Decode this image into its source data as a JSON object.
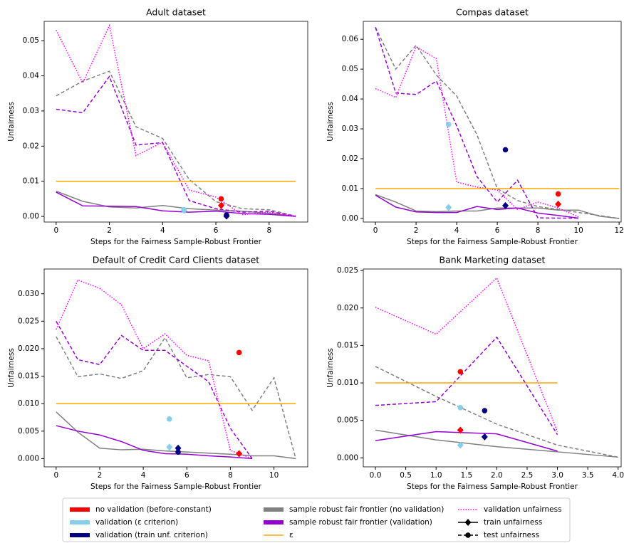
{
  "chart_data": [
    {
      "type": "line",
      "title": "Adult dataset",
      "xlabel": "Steps for the Fairness Sample-Robust Frontier",
      "ylabel": "Unfairness",
      "xlim": [
        -0.45,
        9.45
      ],
      "ylim": [
        -0.0016,
        0.0555
      ],
      "xticks": [
        0,
        2,
        4,
        6,
        8
      ],
      "yticks": [
        {
          "value": 0,
          "label": "0.00"
        },
        {
          "value": 0.01,
          "label": "0.01"
        },
        {
          "value": 0.02,
          "label": "0.02"
        },
        {
          "value": 0.03,
          "label": "0.03"
        },
        {
          "value": 0.04,
          "label": "0.04"
        },
        {
          "value": 0.05,
          "label": "0.05"
        }
      ],
      "series": [
        {
          "color": "#808080",
          "dash": "solid",
          "x": [
            0,
            1,
            2,
            3,
            4,
            5,
            6,
            7,
            8,
            9
          ],
          "values": [
            0.0072,
            0.0043,
            0.0027,
            0.0024,
            0.0031,
            0.0022,
            0.0018,
            0.0015,
            0.0009,
            0.0001
          ]
        },
        {
          "color": "#808080",
          "dash": "dashed",
          "x": [
            0,
            1,
            2,
            3,
            4,
            5,
            6,
            7,
            8,
            9
          ],
          "values": [
            0.0343,
            0.0385,
            0.0413,
            0.0255,
            0.0222,
            0.0105,
            0.0042,
            0.0022,
            0.0019,
            0.0001
          ]
        },
        {
          "color": "#9400d3",
          "dash": "solid",
          "x": [
            0,
            1,
            2,
            3,
            4,
            5,
            6,
            7,
            8,
            9
          ],
          "values": [
            0.0069,
            0.003,
            0.0029,
            0.0028,
            0.0016,
            0.0012,
            0.0015,
            0.0008,
            0.0006,
            0
          ]
        },
        {
          "color": "#9400d3",
          "dash": "dashed",
          "x": [
            0,
            1,
            2,
            3,
            4,
            5,
            6,
            7,
            8,
            9
          ],
          "values": [
            0.0305,
            0.0295,
            0.0398,
            0.0203,
            0.021,
            0.0045,
            0.0022,
            0.0012,
            0.0015,
            0
          ]
        },
        {
          "color": "#ff00ff",
          "dash": "dotted",
          "x": [
            0,
            1,
            2,
            3,
            4,
            5,
            6,
            7,
            8,
            9
          ],
          "values": [
            0.053,
            0.038,
            0.0543,
            0.0173,
            0.0211,
            0.0075,
            0.0055,
            0.0005,
            0.0012,
            0
          ]
        },
        {
          "color": "#ffa500",
          "dash": "solid",
          "x": [
            0,
            9
          ],
          "values": [
            0.01,
            0.01
          ]
        }
      ],
      "points": [
        {
          "color": "#ff0000",
          "marker": "circle",
          "x": 6.2,
          "y": 0.005
        },
        {
          "color": "#ff0000",
          "marker": "diamond",
          "x": 6.2,
          "y": 0.0031
        },
        {
          "color": "#87ceeb",
          "marker": "circle",
          "x": 4.8,
          "y": 0.0019
        },
        {
          "color": "#87ceeb",
          "marker": "diamond",
          "x": 4.8,
          "y": 0.0017
        },
        {
          "color": "#000080",
          "marker": "circle",
          "x": 6.4,
          "y": 0.0004
        },
        {
          "color": "#000080",
          "marker": "diamond",
          "x": 6.4,
          "y": 0.0001
        }
      ]
    },
    {
      "type": "line",
      "title": "Compas dataset",
      "xlabel": "Steps for the Fairness Sample-Robust Frontier",
      "ylabel": "Unfairness",
      "xlim": [
        -0.6,
        12.1
      ],
      "ylim": [
        -0.0012,
        0.066
      ],
      "xticks": [
        0,
        2,
        4,
        6,
        8,
        10,
        12
      ],
      "yticks": [
        {
          "value": 0,
          "label": "0.00"
        },
        {
          "value": 0.01,
          "label": "0.01"
        },
        {
          "value": 0.02,
          "label": "0.02"
        },
        {
          "value": 0.03,
          "label": "0.03"
        },
        {
          "value": 0.04,
          "label": "0.04"
        },
        {
          "value": 0.05,
          "label": "0.05"
        },
        {
          "value": 0.06,
          "label": "0.06"
        }
      ],
      "series": [
        {
          "color": "#808080",
          "dash": "solid",
          "x": [
            0,
            1,
            2,
            3,
            4,
            5,
            6,
            7,
            8,
            9,
            10,
            11,
            12
          ],
          "values": [
            0.008,
            0.0055,
            0.0025,
            0.0023,
            0.0025,
            0.0025,
            0.0035,
            0.0035,
            0.0035,
            0.0028,
            0.0028,
            0.0008,
            0
          ]
        },
        {
          "color": "#808080",
          "dash": "dashed",
          "x": [
            0,
            1,
            2,
            3,
            4,
            5,
            6,
            7,
            8,
            9,
            10,
            11,
            12
          ],
          "values": [
            0.064,
            0.05,
            0.058,
            0.048,
            0.041,
            0.028,
            0.01,
            0.006,
            0.004,
            0.003,
            0.002,
            0.001,
            0
          ]
        },
        {
          "color": "#9400d3",
          "dash": "solid",
          "x": [
            0,
            1,
            2,
            3,
            4,
            5,
            6,
            7,
            8,
            9,
            10
          ],
          "values": [
            0.0078,
            0.0038,
            0.0022,
            0.002,
            0.002,
            0.004,
            0.003,
            0.0035,
            0.0018,
            0.001,
            0.0001
          ]
        },
        {
          "color": "#9400d3",
          "dash": "dashed",
          "x": [
            0,
            1,
            2,
            3,
            4,
            5,
            6,
            7,
            8,
            9,
            10
          ],
          "values": [
            0.064,
            0.042,
            0.0415,
            0.046,
            0.031,
            0.014,
            0.0055,
            0.0128,
            0.0002,
            0.0001,
            0.0001
          ]
        },
        {
          "color": "#ff00ff",
          "dash": "dotted",
          "x": [
            0,
            1,
            2,
            3,
            4,
            5,
            6,
            7,
            8,
            9,
            10
          ],
          "values": [
            0.0435,
            0.0405,
            0.0575,
            0.0535,
            0.0122,
            0.0105,
            0.0095,
            0.003,
            0.0055,
            0.0035,
            0.0005
          ]
        },
        {
          "color": "#ffa500",
          "dash": "solid",
          "x": [
            0,
            12
          ],
          "values": [
            0.01,
            0.01
          ]
        }
      ],
      "points": [
        {
          "color": "#87ceeb",
          "marker": "circle",
          "x": 3.6,
          "y": 0.0315
        },
        {
          "color": "#87ceeb",
          "marker": "diamond",
          "x": 3.6,
          "y": 0.0037
        },
        {
          "color": "#000080",
          "marker": "circle",
          "x": 6.4,
          "y": 0.023
        },
        {
          "color": "#000080",
          "marker": "diamond",
          "x": 6.4,
          "y": 0.0043
        },
        {
          "color": "#ff0000",
          "marker": "circle",
          "x": 9,
          "y": 0.0082
        },
        {
          "color": "#ff0000",
          "marker": "diamond",
          "x": 9,
          "y": 0.0048
        }
      ]
    },
    {
      "type": "line",
      "title": "Default of Credit Card Clients dataset",
      "xlabel": "Steps for the Fairness Sample-Robust Frontier",
      "ylabel": "Unfairness",
      "xlim": [
        -0.55,
        11.55
      ],
      "ylim": [
        -0.0015,
        0.0345
      ],
      "xticks": [
        0,
        2,
        4,
        6,
        8,
        10
      ],
      "yticks": [
        {
          "value": 0,
          "label": "0.000"
        },
        {
          "value": 0.005,
          "label": "0.005"
        },
        {
          "value": 0.01,
          "label": "0.010"
        },
        {
          "value": 0.015,
          "label": "0.015"
        },
        {
          "value": 0.02,
          "label": "0.020"
        },
        {
          "value": 0.025,
          "label": "0.025"
        },
        {
          "value": 0.03,
          "label": "0.030"
        }
      ],
      "series": [
        {
          "color": "#808080",
          "dash": "solid",
          "x": [
            0,
            1,
            2,
            3,
            4,
            5,
            6,
            7,
            8,
            9,
            10,
            11
          ],
          "values": [
            0.0085,
            0.0048,
            0.0019,
            0.0016,
            0.0017,
            0.0014,
            0.0012,
            0.001,
            0.0008,
            0.0005,
            0.0005,
            0
          ]
        },
        {
          "color": "#808080",
          "dash": "dashed",
          "x": [
            0,
            1,
            2,
            3,
            4,
            5,
            6,
            7,
            8,
            9,
            10,
            11
          ],
          "values": [
            0.0222,
            0.0149,
            0.0154,
            0.0146,
            0.016,
            0.022,
            0.0147,
            0.0153,
            0.0149,
            0.0088,
            0.0147,
            0
          ]
        },
        {
          "color": "#9400d3",
          "dash": "solid",
          "x": [
            0,
            1,
            2,
            3,
            4,
            5,
            6,
            7,
            8,
            9
          ],
          "values": [
            0.006,
            0.005,
            0.0043,
            0.0031,
            0.0015,
            0.0009,
            0.0008,
            0.0005,
            0.0003,
            0
          ]
        },
        {
          "color": "#9400d3",
          "dash": "dashed",
          "x": [
            0,
            1,
            2,
            3,
            4,
            5,
            6,
            7,
            8,
            9
          ],
          "values": [
            0.025,
            0.018,
            0.0171,
            0.0224,
            0.0197,
            0.0197,
            0.0168,
            0.014,
            0.0055,
            0
          ]
        },
        {
          "color": "#ff00ff",
          "dash": "dotted",
          "x": [
            0,
            1,
            2,
            3,
            4,
            5,
            6,
            7,
            8,
            9
          ],
          "values": [
            0.0235,
            0.0325,
            0.031,
            0.028,
            0.02,
            0.0227,
            0.0188,
            0.0178,
            0.0015,
            0
          ]
        },
        {
          "color": "#ffa500",
          "dash": "solid",
          "x": [
            0,
            11
          ],
          "values": [
            0.01,
            0.01
          ]
        }
      ],
      "points": [
        {
          "color": "#ff0000",
          "marker": "circle",
          "x": 8.4,
          "y": 0.0193
        },
        {
          "color": "#ff0000",
          "marker": "diamond",
          "x": 8.4,
          "y": 0.0009
        },
        {
          "color": "#87ceeb",
          "marker": "circle",
          "x": 5.2,
          "y": 0.0072
        },
        {
          "color": "#87ceeb",
          "marker": "diamond",
          "x": 5.2,
          "y": 0.0021
        },
        {
          "color": "#000080",
          "marker": "diamond",
          "x": 5.6,
          "y": 0.0019
        },
        {
          "color": "#000080",
          "marker": "circle",
          "x": 5.6,
          "y": 0.0012
        }
      ]
    },
    {
      "type": "line",
      "title": "Bank Marketing dataset",
      "xlabel": "Steps for the Fairness Sample-Robust Frontier",
      "ylabel": "Unfairness",
      "xlim": [
        -0.2,
        4.05
      ],
      "ylim": [
        -0.0012,
        0.0252
      ],
      "xticks": [
        {
          "value": 0,
          "label": "0.0"
        },
        {
          "value": 0.5,
          "label": "0.5"
        },
        {
          "value": 1,
          "label": "1.0"
        },
        {
          "value": 1.5,
          "label": "1.5"
        },
        {
          "value": 2,
          "label": "2.0"
        },
        {
          "value": 2.5,
          "label": "2.5"
        },
        {
          "value": 3,
          "label": "3.0"
        },
        {
          "value": 3.5,
          "label": "3.5"
        },
        {
          "value": 4,
          "label": "4.0"
        }
      ],
      "yticks": [
        {
          "value": 0,
          "label": "0.000"
        },
        {
          "value": 0.005,
          "label": "0.005"
        },
        {
          "value": 0.01,
          "label": "0.010"
        },
        {
          "value": 0.015,
          "label": "0.015"
        },
        {
          "value": 0.02,
          "label": "0.020"
        },
        {
          "value": 0.025,
          "label": "0.025"
        }
      ],
      "series": [
        {
          "color": "#808080",
          "dash": "solid",
          "x": [
            0,
            1,
            2,
            3,
            4
          ],
          "values": [
            0.0037,
            0.0024,
            0.0015,
            0.0008,
            0.0001
          ]
        },
        {
          "color": "#808080",
          "dash": "dashed",
          "x": [
            0,
            1,
            2,
            3,
            4
          ],
          "values": [
            0.0122,
            0.0082,
            0.0045,
            0.0017,
            0.0001
          ]
        },
        {
          "color": "#9400d3",
          "dash": "solid",
          "x": [
            0,
            1,
            2,
            3
          ],
          "values": [
            0.0023,
            0.0035,
            0.0032,
            0.0009
          ]
        },
        {
          "color": "#9400d3",
          "dash": "dashed",
          "x": [
            0,
            1,
            2,
            3
          ],
          "values": [
            0.007,
            0.0075,
            0.0161,
            0.0031
          ]
        },
        {
          "color": "#ff00ff",
          "dash": "dotted",
          "x": [
            0,
            1,
            2,
            3
          ],
          "values": [
            0.0201,
            0.0165,
            0.024,
            0.0035
          ]
        },
        {
          "color": "#ffa500",
          "dash": "solid",
          "x": [
            0,
            3
          ],
          "values": [
            0.01,
            0.01
          ]
        }
      ],
      "points": [
        {
          "color": "#ff0000",
          "marker": "circle",
          "x": 1.4,
          "y": 0.0115
        },
        {
          "color": "#ff0000",
          "marker": "diamond",
          "x": 1.4,
          "y": 0.0037
        },
        {
          "color": "#87ceeb",
          "marker": "circle",
          "x": 1.4,
          "y": 0.0067
        },
        {
          "color": "#87ceeb",
          "marker": "diamond",
          "x": 1.4,
          "y": 0.0017
        },
        {
          "color": "#000080",
          "marker": "circle",
          "x": 1.8,
          "y": 0.0063
        },
        {
          "color": "#000080",
          "marker": "diamond",
          "x": 1.8,
          "y": 0.0028
        }
      ]
    }
  ],
  "legend": [
    {
      "name": "no validation (before-constant)",
      "color": "#ff0000",
      "style": "patch"
    },
    {
      "name": "validation (ε criterion)",
      "color": "#87ceeb",
      "style": "patch"
    },
    {
      "name": "validation (train unf. criterion)",
      "color": "#000080",
      "style": "patch"
    },
    {
      "name": "sample robust fair frontier (no validation)",
      "color": "#808080",
      "style": "patch"
    },
    {
      "name": "sample robust fair frontier (validation)",
      "color": "#9400d3",
      "style": "patch"
    },
    {
      "name": "ε",
      "color": "#ffa500",
      "style": "solid"
    },
    {
      "name": "validation unfairness",
      "color": "#ff00ff",
      "style": "dotted"
    },
    {
      "name": "train unfairness",
      "color": "#000000",
      "style": "solid",
      "marker": "diamond"
    },
    {
      "name": "test unfairness",
      "color": "#000000",
      "style": "dashed",
      "marker": "circle"
    }
  ]
}
